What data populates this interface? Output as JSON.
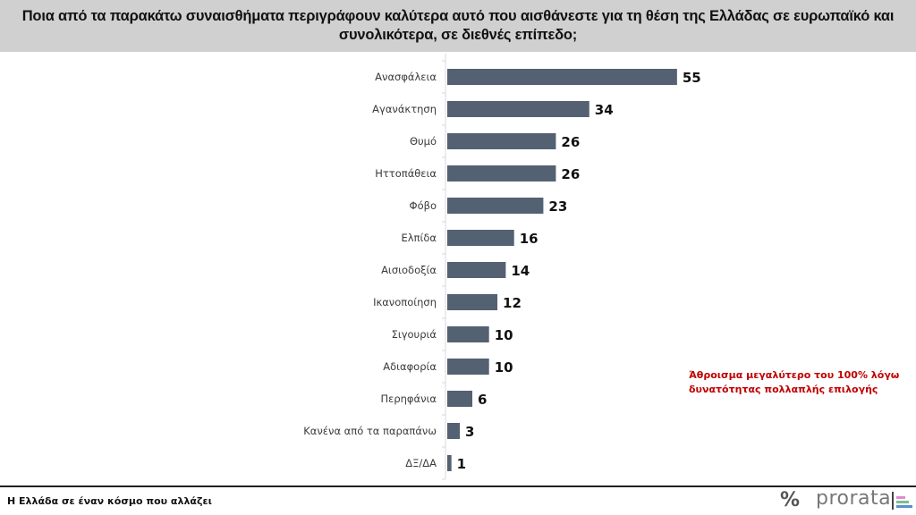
{
  "header": {
    "title": "Ποια από τα παρακάτω συναισθήματα περιγράφουν καλύτερα αυτό που αισθάνεστε για τη θέση της Ελλάδας σε ευρωπαϊκό και συνολικότερα, σε διεθνές επίπεδο;"
  },
  "note": "Άθροισμα μεγαλύτερο του 100% λόγω\nδυνατότητας πολλαπλής επιλογής",
  "footer": {
    "text": "Η Ελλάδα σε έναν κόσμο που αλλάζει",
    "logo_symbol": "%",
    "logo_text": "prorata"
  },
  "colors": {
    "bar": "#536173",
    "header_bg": "#d0d0d0",
    "note": "#c00000",
    "logo_stripes": [
      "#e08ad0",
      "#7cc08a",
      "#5b8fd0"
    ]
  },
  "chart_data": {
    "type": "bar",
    "orientation": "horizontal",
    "title": "Ποια από τα παρακάτω συναισθήματα περιγράφουν καλύτερα αυτό που αισθάνεστε για τη θέση της Ελλάδας σε ευρωπαϊκό και συνολικότερα, σε διεθνές επίπεδο;",
    "xlabel": "",
    "ylabel": "",
    "categories": [
      "Ανασφάλεια",
      "Αγανάκτηση",
      "Θυμό",
      "Ηττοπάθεια",
      "Φόβο",
      "Ελπίδα",
      "Αισιοδοξία",
      "Ικανοποίηση",
      "Σιγουριά",
      "Αδιαφορία",
      "Περηφάνια",
      "Κανένα από τα παραπάνω",
      "ΔΞ/ΔΑ"
    ],
    "values": [
      55,
      34,
      26,
      26,
      23,
      16,
      14,
      12,
      10,
      10,
      6,
      3,
      1
    ],
    "xlim": [
      0,
      100
    ],
    "grid": false,
    "data_labels": true,
    "legend": "none"
  }
}
